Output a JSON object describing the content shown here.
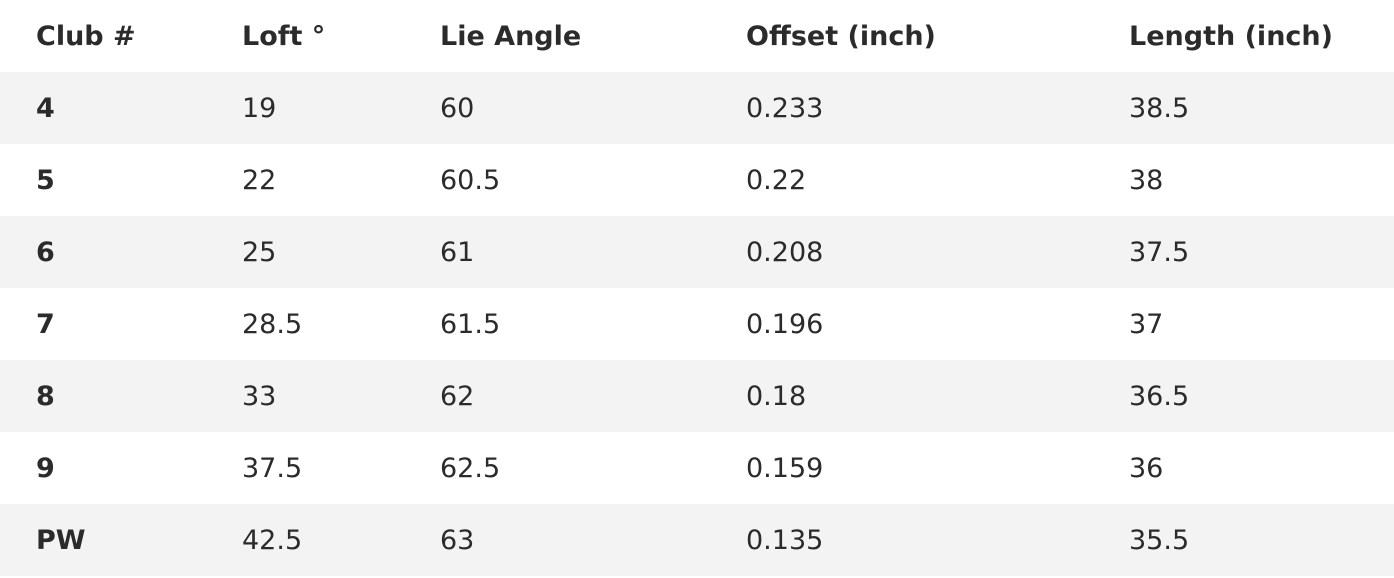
{
  "table": {
    "headers": [
      "Club #",
      "Loft °",
      "Lie Angle",
      "Offset (inch)",
      "Length (inch)"
    ],
    "rows": [
      [
        "4",
        "19",
        "60",
        "0.233",
        "38.5"
      ],
      [
        "5",
        "22",
        "60.5",
        "0.22",
        "38"
      ],
      [
        "6",
        "25",
        "61",
        "0.208",
        "37.5"
      ],
      [
        "7",
        "28.5",
        "61.5",
        "0.196",
        "37"
      ],
      [
        "8",
        "33",
        "62",
        "0.18",
        "36.5"
      ],
      [
        "9",
        "37.5",
        "62.5",
        "0.159",
        "36"
      ],
      [
        "PW",
        "42.5",
        "63",
        "0.135",
        "35.5"
      ]
    ]
  }
}
